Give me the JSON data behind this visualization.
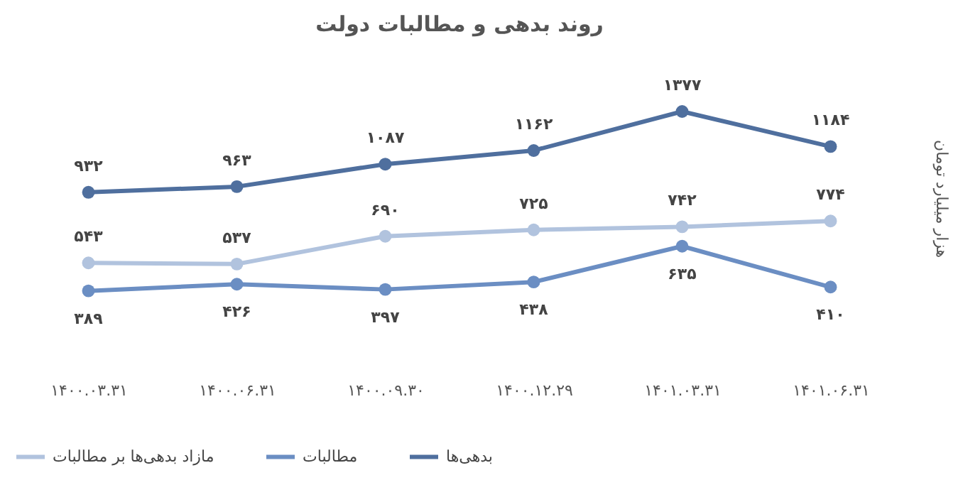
{
  "chart_data": {
    "type": "line",
    "title": "روند بدهی و مطالبات دولت",
    "ylabel": "هزار میلیارد تومان",
    "categories": [
      "۱۴۰۰.۰۳.۳۱",
      "۱۴۰۰.۰۶.۳۱",
      "۱۴۰۰.۰۹.۳۰",
      "۱۴۰۰.۱۲.۲۹",
      "۱۴۰۱.۰۳.۳۱",
      "۱۴۰۱.۰۶.۳۱"
    ],
    "series": [
      {
        "name": "بدهی‌ها",
        "color": "#4f6f9e",
        "values": [
          932,
          963,
          1087,
          1162,
          1377,
          1184
        ],
        "value_labels": [
          "۹۳۲",
          "۹۶۳",
          "۱۰۸۷",
          "۱۱۶۲",
          "۱۳۷۷",
          "۱۱۸۴"
        ]
      },
      {
        "name": "مطالبات",
        "color": "#6b8ec3",
        "values": [
          389,
          426,
          397,
          438,
          635,
          410
        ],
        "value_labels": [
          "۳۸۹",
          "۴۲۶",
          "۳۹۷",
          "۴۳۸",
          "۶۳۵",
          "۴۱۰"
        ]
      },
      {
        "name": "مازاد بدهی‌ها بر مطالبات",
        "color": "#b1c3de",
        "values": [
          543,
          537,
          690,
          725,
          742,
          774
        ],
        "value_labels": [
          "۵۴۳",
          "۵۳۷",
          "۶۹۰",
          "۷۲۵",
          "۷۴۲",
          "۷۷۴"
        ]
      }
    ],
    "marker": "circle",
    "line_style": "solid",
    "legend": "bottom",
    "grid": false
  }
}
